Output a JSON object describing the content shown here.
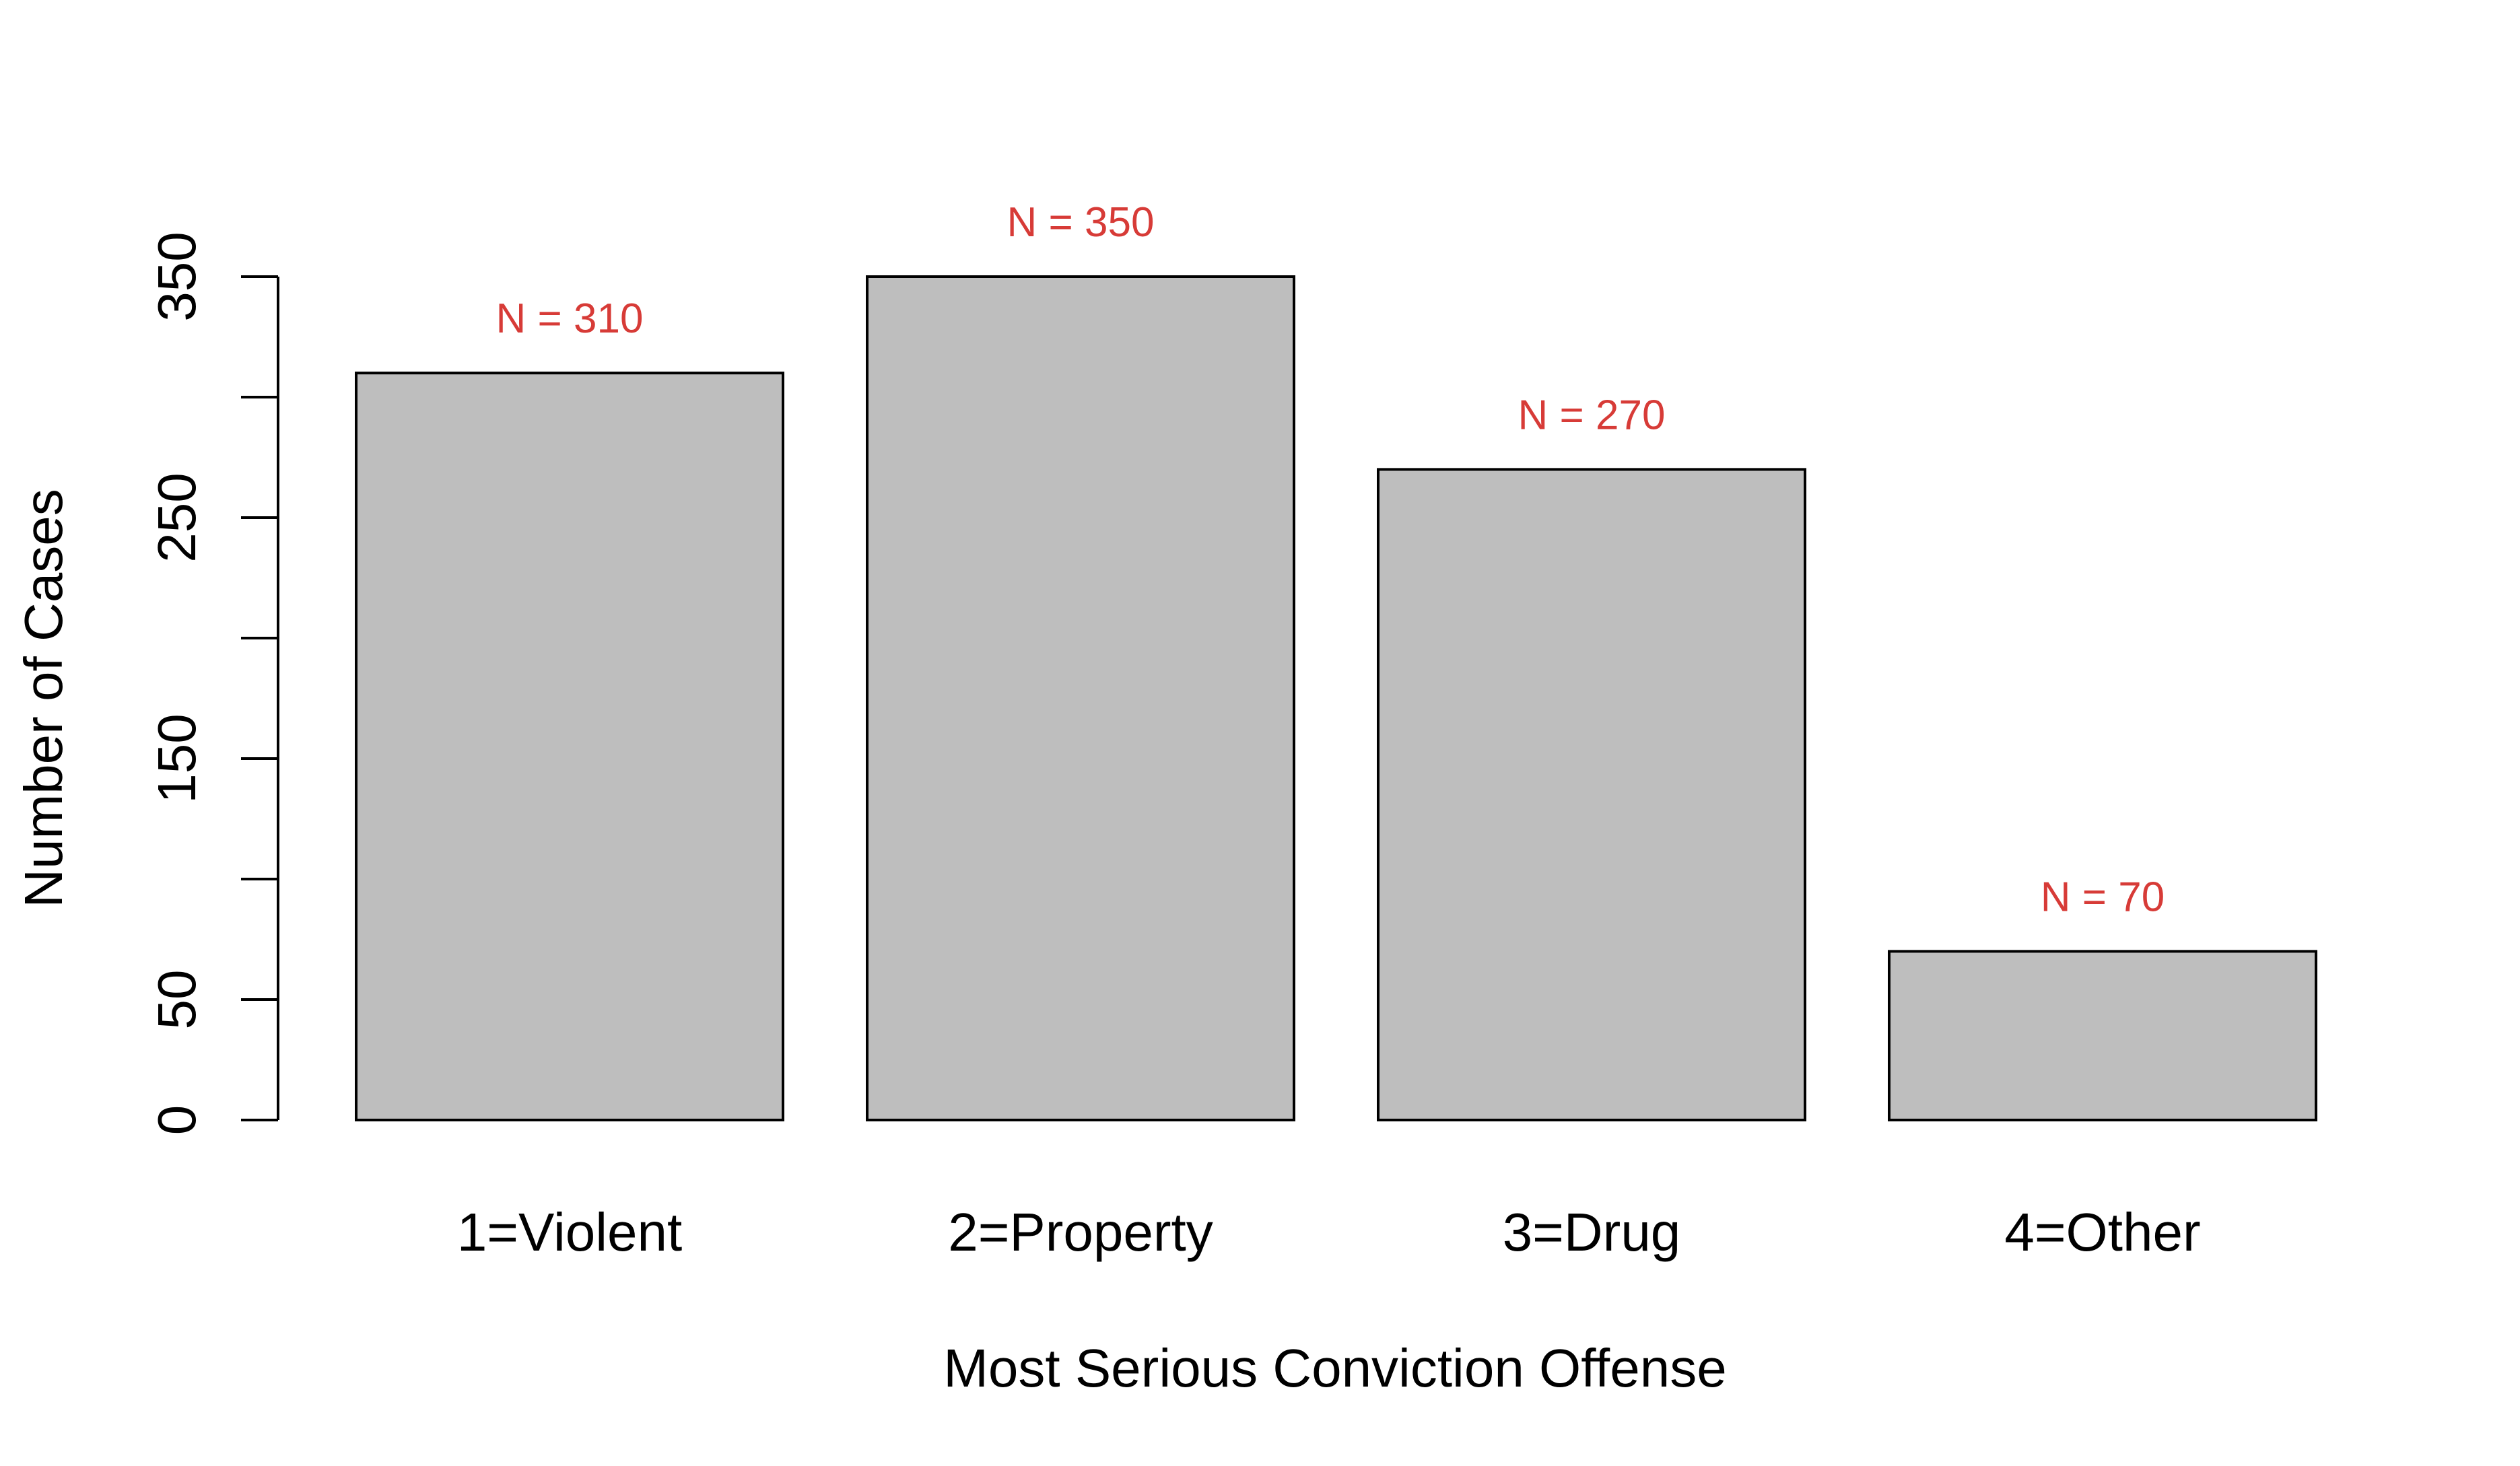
{
  "chart_data": {
    "type": "bar",
    "title": "",
    "xlabel": "Most Serious Conviction Offense",
    "ylabel": "Number of Cases",
    "categories": [
      "1=Violent",
      "2=Property",
      "3=Drug",
      "4=Other"
    ],
    "values": [
      310,
      350,
      270,
      70
    ],
    "data_labels": [
      "N = 310",
      "N = 350",
      "N = 270",
      "N = 70"
    ],
    "ylim": [
      0,
      350
    ],
    "y_ticks": [
      0,
      50,
      100,
      150,
      200,
      250,
      300,
      350
    ],
    "y_tick_labels": [
      "0",
      "50",
      "",
      "150",
      "",
      "250",
      "",
      "350"
    ],
    "grid": false,
    "legend": "none",
    "colors": {
      "bar_fill": "#bebebe",
      "bar_stroke": "#000000",
      "data_label": "#d73b37"
    }
  }
}
